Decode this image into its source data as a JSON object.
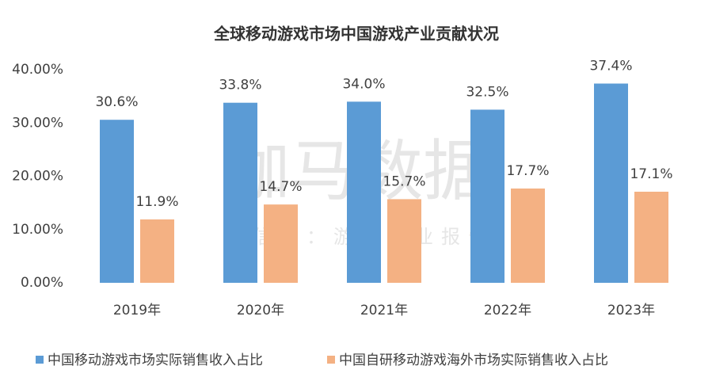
{
  "chart_data": {
    "type": "bar",
    "title": "全球移动游戏市场中国游戏产业贡献状况",
    "watermark": "伽马数据",
    "watermark_subtitle": "微信号：游戏产业报告",
    "categories": [
      "2019年",
      "2020年",
      "2021年",
      "2022年",
      "2023年"
    ],
    "series": [
      {
        "name": "中国移动游戏市场实际销售收入占比",
        "color": "#5b9bd5",
        "values": [
          30.6,
          33.8,
          34.0,
          32.5,
          37.4
        ],
        "value_labels": [
          "30.6%",
          "33.8%",
          "34.0%",
          "32.5%",
          "37.4%"
        ]
      },
      {
        "name": "中国自研移动游戏海外市场实际销售收入占比",
        "color": "#f4b183",
        "values": [
          11.9,
          14.7,
          15.7,
          17.7,
          17.1
        ],
        "value_labels": [
          "11.9%",
          "14.7%",
          "15.7%",
          "17.7%",
          "17.1%"
        ]
      }
    ],
    "ylim": [
      0,
      40
    ],
    "yticks": [
      {
        "value": 0,
        "label": "0.00%"
      },
      {
        "value": 10,
        "label": "10.00%"
      },
      {
        "value": 20,
        "label": "20.00%"
      },
      {
        "value": 30,
        "label": "30.00%"
      },
      {
        "value": 40,
        "label": "40.00%"
      }
    ],
    "grid": false,
    "legend": "bottom"
  }
}
